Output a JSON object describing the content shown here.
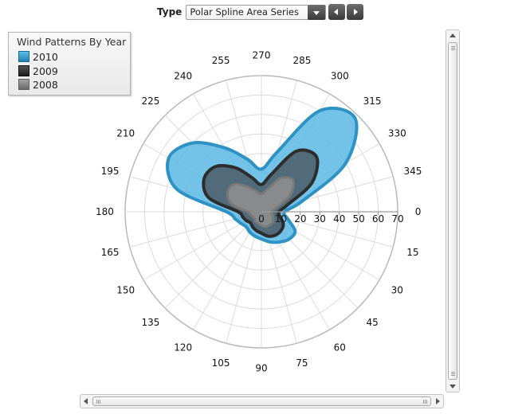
{
  "toolbar": {
    "type_label": "Type",
    "selected_series_type": "Polar Spline Area Series"
  },
  "legend": {
    "title": "Wind Patterns By Year",
    "items": [
      {
        "label": "2010",
        "color": "#2e92c4"
      },
      {
        "label": "2009",
        "color": "#2d2d2d"
      },
      {
        "label": "2008",
        "color": "#808080"
      }
    ]
  },
  "chart_data": {
    "type": "area",
    "variant": "polar-spline",
    "angle_labels": [
      "0",
      "15",
      "30",
      "45",
      "60",
      "75",
      "90",
      "105",
      "120",
      "135",
      "150",
      "165",
      "180",
      "195",
      "210",
      "225",
      "240",
      "255",
      "270",
      "285",
      "300",
      "315",
      "330",
      "345"
    ],
    "radial_labels": [
      "0",
      "10",
      "20",
      "30",
      "40",
      "50",
      "60",
      "70"
    ],
    "radial_range": [
      0,
      70
    ],
    "angular_range": [
      0,
      360
    ],
    "grid": true,
    "legend_position": "top-left",
    "series": [
      {
        "name": "2010",
        "color": "#2e92c4",
        "fill": "#5bb8e4",
        "angles": [
          0,
          15,
          30,
          45,
          60,
          75,
          90,
          105,
          120,
          135,
          150,
          165,
          180,
          195,
          210,
          225,
          240,
          255,
          270,
          285,
          300,
          315,
          330,
          345
        ],
        "values": [
          12,
          14,
          20,
          20,
          18,
          16,
          14,
          13,
          12,
          11,
          12,
          14,
          18,
          45,
          55,
          50,
          38,
          28,
          22,
          32,
          60,
          68,
          50,
          22
        ]
      },
      {
        "name": "2009",
        "color": "#2d2d2d",
        "fill": "#4f626e",
        "angles": [
          0,
          15,
          30,
          45,
          60,
          75,
          90,
          105,
          120,
          135,
          150,
          165,
          180,
          195,
          210,
          225,
          240,
          255,
          270,
          285,
          300,
          315,
          330,
          345
        ],
        "values": [
          9,
          10,
          13,
          14,
          14,
          13,
          11,
          10,
          9,
          8,
          9,
          10,
          12,
          28,
          34,
          33,
          26,
          18,
          14,
          20,
          36,
          40,
          30,
          14
        ]
      },
      {
        "name": "2008",
        "color": "#7a7a7a",
        "fill": "#8e8e8e",
        "angles": [
          0,
          15,
          30,
          45,
          60,
          75,
          90,
          105,
          120,
          135,
          150,
          165,
          180,
          195,
          210,
          225,
          240,
          255,
          270,
          285,
          300,
          315,
          330,
          345
        ],
        "values": [
          5,
          6,
          7,
          8,
          8,
          8,
          7,
          6,
          6,
          5,
          5,
          6,
          7,
          16,
          20,
          20,
          15,
          11,
          9,
          12,
          20,
          23,
          17,
          8
        ]
      }
    ]
  }
}
